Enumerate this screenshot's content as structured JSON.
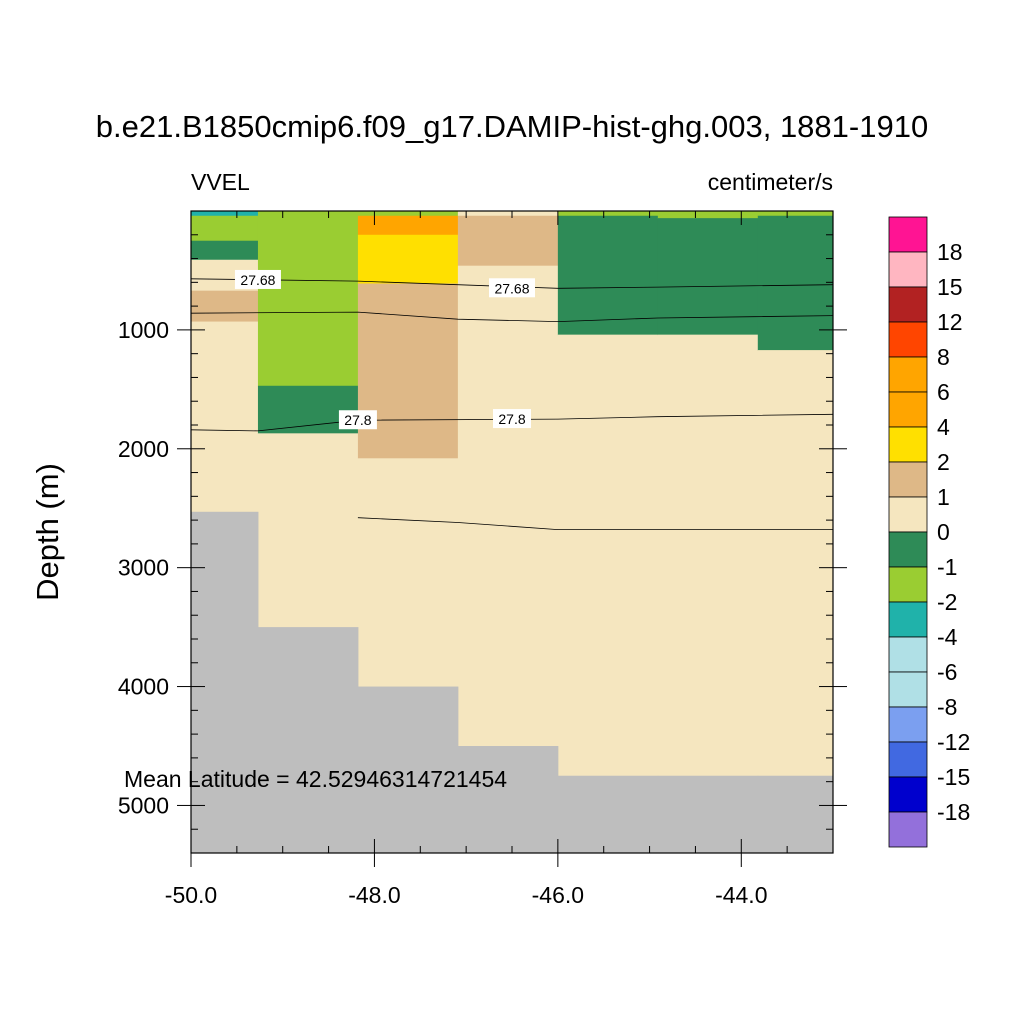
{
  "chart_data": {
    "type": "heatmap",
    "title": "b.e21.B1850cmip6.f09_g17.DAMIP-hist-ghg.003, 1881-1910",
    "left_label": "VVEL",
    "right_label": "centimeter/s",
    "ylabel": "Depth (m)",
    "xlabel": "",
    "x_range": [
      -50.0,
      -43.0
    ],
    "y_range": [
      0,
      5400
    ],
    "y_reversed": true,
    "x_ticks": [
      "-50.0",
      "-48.0",
      "-46.0",
      "-44.0"
    ],
    "x_tick_values": [
      -50.0,
      -48.0,
      -46.0,
      -44.0
    ],
    "y_ticks": [
      "1000",
      "2000",
      "3000",
      "4000",
      "5000"
    ],
    "y_tick_values": [
      1000,
      2000,
      3000,
      4000,
      5000
    ],
    "annotation": "Mean Latitude = 42.52946314721454",
    "land_color": "#bebebe",
    "colorbar": {
      "labels": [
        "18",
        "15",
        "12",
        "8",
        "6",
        "4",
        "2",
        "1",
        "0",
        "-1",
        "-2",
        "-4",
        "-6",
        "-8",
        "-12",
        "-15",
        "-18"
      ],
      "colors": [
        "#ff1493",
        "#ffb6c1",
        "#b22222",
        "#ff4500",
        "#ffa500",
        "#ffa500",
        "#ffe000",
        "#deb887",
        "#f5e6bf",
        "#2e8b57",
        "#9acd32",
        "#20b2aa",
        "#b0e0e6",
        "#b0e0e6",
        "#7b9ff0",
        "#4169e1",
        "#0000cd",
        "#9370db"
      ]
    },
    "columns": [
      {
        "x_range": [
          -50.0,
          -49.27
        ],
        "bottom_depth": 2530,
        "cells": [
          {
            "top": 0,
            "bottom": 40,
            "value": -3
          },
          {
            "top": 40,
            "bottom": 250,
            "value": -1.5
          },
          {
            "top": 250,
            "bottom": 410,
            "value": -0.5
          },
          {
            "top": 410,
            "bottom": 670,
            "value": 0.5
          },
          {
            "top": 670,
            "bottom": 930,
            "value": 1.5
          },
          {
            "top": 930,
            "bottom": 2530,
            "value": 0.5
          }
        ]
      },
      {
        "x_range": [
          -49.27,
          -48.18
        ],
        "bottom_depth": 3500,
        "cells": [
          {
            "top": 0,
            "bottom": 1470,
            "value": -1.5
          },
          {
            "top": 1470,
            "bottom": 1870,
            "value": -0.5
          },
          {
            "top": 1870,
            "bottom": 3500,
            "value": 0.5
          }
        ]
      },
      {
        "x_range": [
          -48.18,
          -47.09
        ],
        "bottom_depth": 4000,
        "cells": [
          {
            "top": 0,
            "bottom": 40,
            "value": -1.5
          },
          {
            "top": 40,
            "bottom": 200,
            "value": 5
          },
          {
            "top": 200,
            "bottom": 610,
            "value": 3
          },
          {
            "top": 610,
            "bottom": 2080,
            "value": 1.5
          },
          {
            "top": 2080,
            "bottom": 4000,
            "value": 0.5
          }
        ]
      },
      {
        "x_range": [
          -47.09,
          -46.0
        ],
        "bottom_depth": 4500,
        "cells": [
          {
            "top": 0,
            "bottom": 40,
            "value": 0.5
          },
          {
            "top": 40,
            "bottom": 460,
            "value": 1.5
          },
          {
            "top": 460,
            "bottom": 4500,
            "value": 0.5
          }
        ]
      },
      {
        "x_range": [
          -46.0,
          -44.91
        ],
        "bottom_depth": 4750,
        "cells": [
          {
            "top": 0,
            "bottom": 40,
            "value": -1.5
          },
          {
            "top": 40,
            "bottom": 1040,
            "value": -0.5
          },
          {
            "top": 1040,
            "bottom": 4750,
            "value": 0.5
          }
        ]
      },
      {
        "x_range": [
          -44.91,
          -43.82
        ],
        "bottom_depth": 4750,
        "cells": [
          {
            "top": 0,
            "bottom": 60,
            "value": -1.5
          },
          {
            "top": 60,
            "bottom": 1040,
            "value": -0.5
          },
          {
            "top": 1040,
            "bottom": 4750,
            "value": 0.5
          }
        ]
      },
      {
        "x_range": [
          -43.82,
          -43.0
        ],
        "bottom_depth": 4750,
        "cells": [
          {
            "top": 0,
            "bottom": 40,
            "value": -1.5
          },
          {
            "top": 40,
            "bottom": 1170,
            "value": -0.5
          },
          {
            "top": 1170,
            "bottom": 4750,
            "value": 0.5
          }
        ]
      }
    ],
    "contours": [
      {
        "label": "27.68",
        "points": [
          [
            -50.0,
            570
          ],
          [
            -48.18,
            590
          ],
          [
            -46.0,
            650
          ],
          [
            -44.91,
            640
          ],
          [
            -43.0,
            620
          ]
        ],
        "label_positions": [
          [
            -49.27,
            580
          ],
          [
            -46.5,
            650
          ]
        ]
      },
      {
        "label": "",
        "points": [
          [
            -50.0,
            860
          ],
          [
            -48.18,
            850
          ],
          [
            -47.09,
            910
          ],
          [
            -46.0,
            930
          ],
          [
            -44.91,
            900
          ],
          [
            -43.0,
            880
          ]
        ],
        "label_positions": []
      },
      {
        "label": "27.8",
        "points": [
          [
            -50.0,
            1840
          ],
          [
            -49.27,
            1850
          ],
          [
            -48.18,
            1760
          ],
          [
            -46.0,
            1750
          ],
          [
            -44.91,
            1730
          ],
          [
            -43.0,
            1710
          ]
        ],
        "label_positions": [
          [
            -48.18,
            1760
          ],
          [
            -46.5,
            1750
          ]
        ]
      },
      {
        "label": "",
        "points": [
          [
            -48.18,
            2580
          ],
          [
            -47.09,
            2620
          ],
          [
            -46.0,
            2680
          ],
          [
            -44.91,
            2680
          ],
          [
            -43.0,
            2680
          ]
        ],
        "label_positions": []
      }
    ]
  }
}
